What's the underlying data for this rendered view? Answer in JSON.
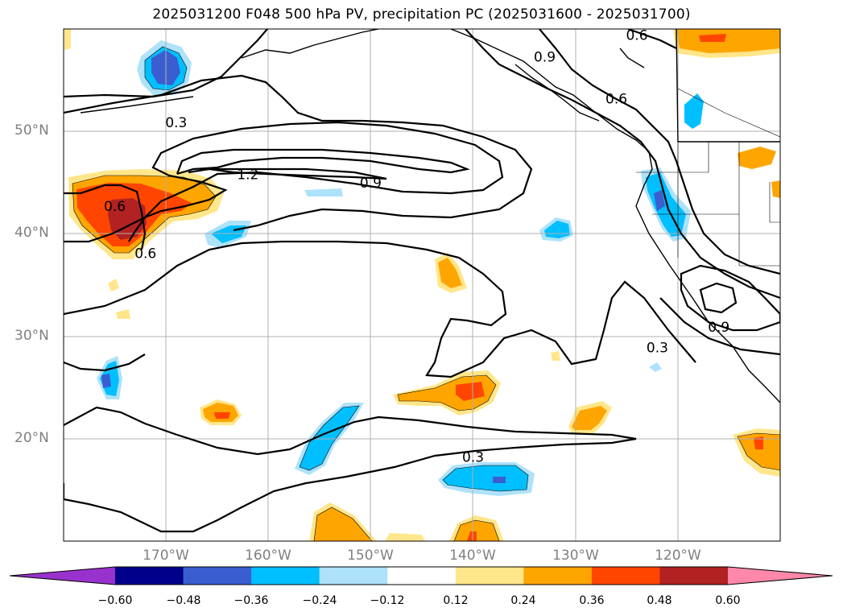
{
  "title": "2025031200 F048 500 hPa PV, precipitation PC (2025031600 - 2025031700)",
  "map": {
    "projection": "PlateCarree",
    "lon_range": [
      -180,
      -110
    ],
    "lat_range": [
      10,
      60
    ],
    "grid": true,
    "lat_labels": [
      "50°N",
      "40°N",
      "30°N",
      "20°N"
    ],
    "lon_labels": [
      "170°W",
      "160°W",
      "150°W",
      "140°W",
      "130°W",
      "120°W"
    ],
    "contour_levels": [
      "0.3",
      "0.6",
      "0.9",
      "1.2"
    ],
    "contour_labels": [
      {
        "text": "0.3",
        "lon": -169.0,
        "lat": 50.9
      },
      {
        "text": "1.2",
        "lon": -162.0,
        "lat": 45.8
      },
      {
        "text": "0.9",
        "lon": -150.0,
        "lat": 45.0
      },
      {
        "text": "0.6",
        "lon": -175.0,
        "lat": 42.7
      },
      {
        "text": "0.6",
        "lon": -172.0,
        "lat": 38.1
      },
      {
        "text": "0.3",
        "lon": -140.0,
        "lat": 18.2
      },
      {
        "text": "0.6",
        "lon": -124.0,
        "lat": 59.4
      },
      {
        "text": "0.9",
        "lon": -133.0,
        "lat": 57.3
      },
      {
        "text": "0.6",
        "lon": -126.0,
        "lat": 53.2
      },
      {
        "text": "0.9",
        "lon": -116.0,
        "lat": 30.9
      },
      {
        "text": "0.3",
        "lon": -122.0,
        "lat": 28.9
      }
    ]
  },
  "colorbar": {
    "ticks": [
      "−0.60",
      "−0.48",
      "−0.36",
      "−0.24",
      "−0.12",
      "0.12",
      "0.24",
      "0.36",
      "0.48",
      "0.60"
    ],
    "colors": [
      "#9932CC",
      "#00008B",
      "#3A5ED0",
      "#00BFFF",
      "#ADE2FA",
      "#FFFFFF",
      "#FFE68A",
      "#FFA500",
      "#FF4500",
      "#B22222",
      "#FF88AA"
    ]
  }
}
